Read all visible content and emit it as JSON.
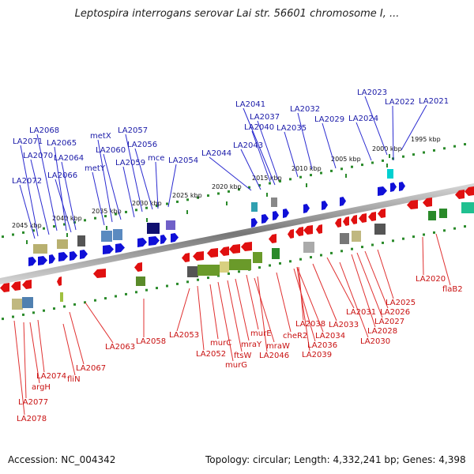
{
  "title": "Leptospira interrogans serovar Lai str. 56601 chromosome I, ...",
  "footer": {
    "accession": "Accession: NC_004342",
    "summary": "Topology: circular; Length: 4,332,241 bp; Genes: 4,398"
  },
  "colors": {
    "forward": "#1010d8",
    "reverse": "#e01010",
    "label_forward": "#1a1aa8",
    "label_reverse": "#c81010"
  },
  "scale_ticks": [
    "1995 kbp",
    "2000 kbp",
    "2005 kbp",
    "2010 kbp",
    "2015 kbp",
    "2020 kbp",
    "2025 kbp",
    "2030 kbp",
    "2035 kbp",
    "2040 kbp",
    "2045 kbp"
  ],
  "top_labels": [
    "LA2021",
    "LA2022",
    "LA2023",
    "LA2024",
    "LA2029",
    "LA2032",
    "LA2035",
    "LA2040",
    "LA2037",
    "LA2041",
    "LA2043",
    "LA2044",
    "LA2054",
    "mce",
    "LA2056",
    "LA2057",
    "LA2059",
    "LA2060",
    "metX",
    "metY",
    "LA2064",
    "LA2065",
    "LA2066",
    "LA2068",
    "LA2070",
    "LA2071",
    "LA2072"
  ],
  "bottom_labels": [
    "LA2020",
    "flaB2",
    "LA2025",
    "LA2026",
    "LA2027",
    "LA2028",
    "LA2030",
    "LA2031",
    "LA2033",
    "LA2034",
    "LA2036",
    "LA2038",
    "LA2039",
    "cheR2",
    "LA2046",
    "mraW",
    "murE",
    "mraY",
    "ftsW",
    "murC",
    "murG",
    "LA2052",
    "LA2053",
    "LA2058",
    "LA2063",
    "LA2067",
    "fliN",
    "LA2074",
    "argH",
    "LA2077",
    "LA2078"
  ]
}
